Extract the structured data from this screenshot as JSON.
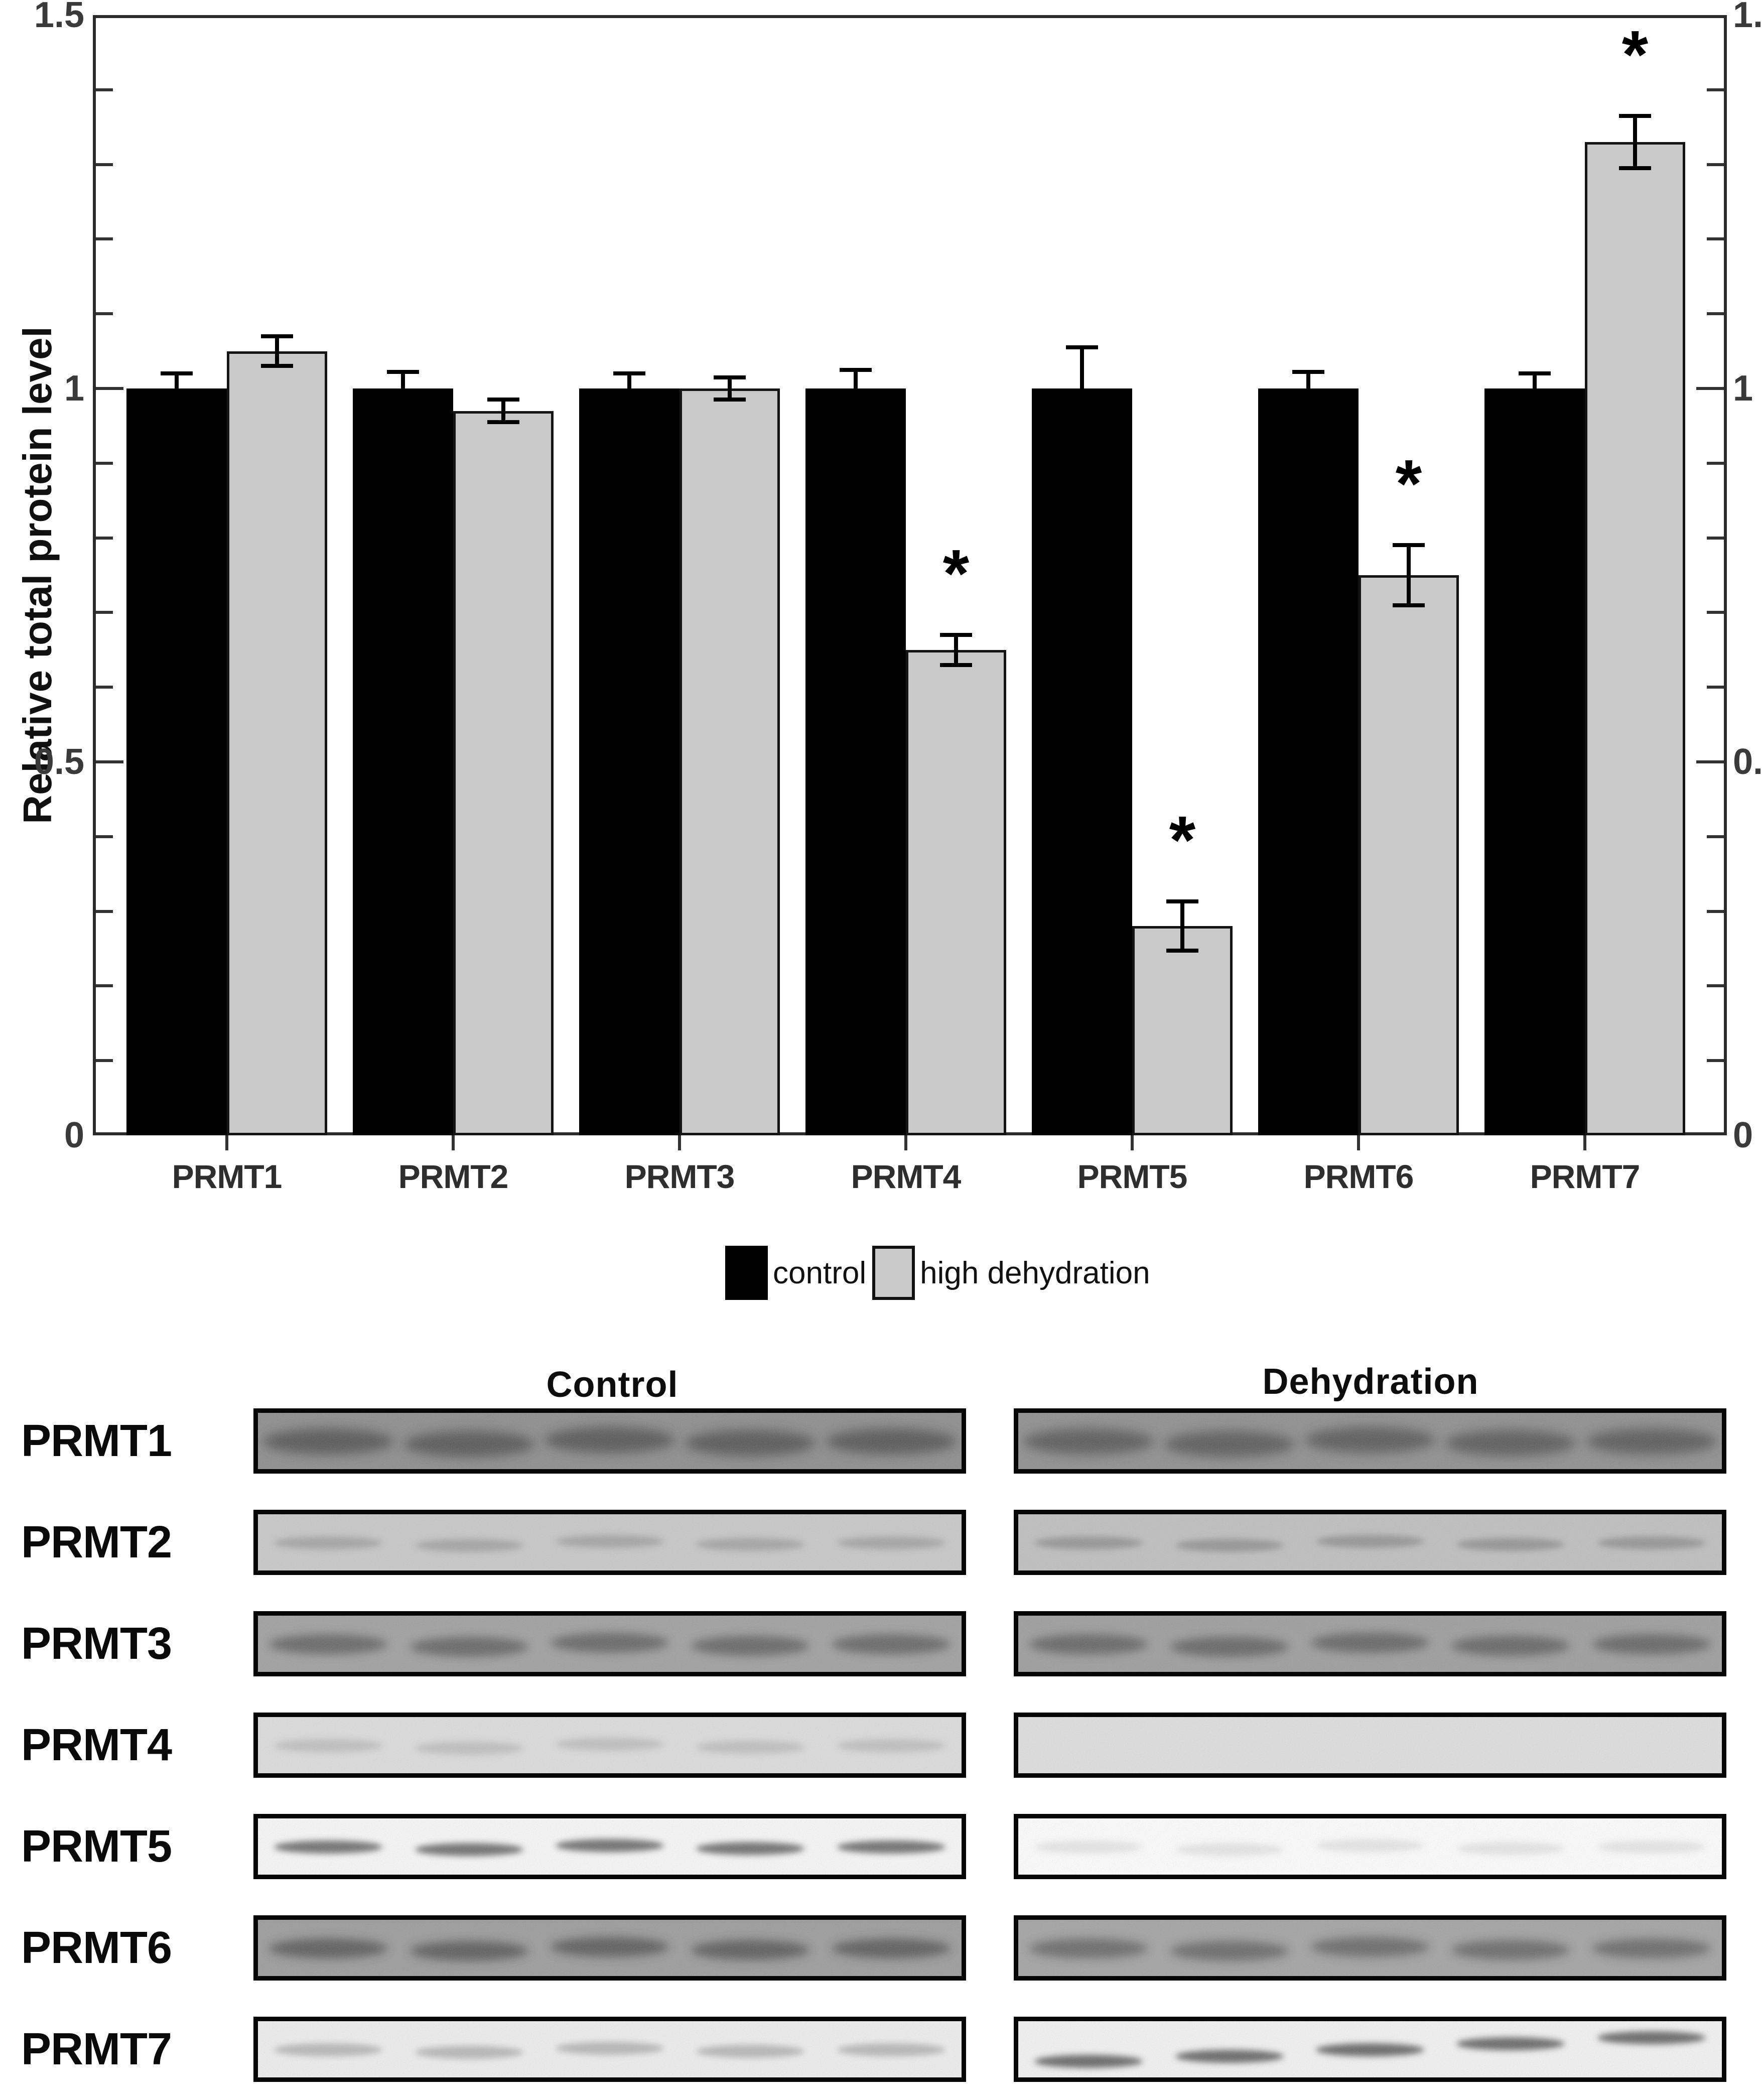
{
  "chart_data": {
    "type": "bar",
    "title": "",
    "categories": [
      "PRMT1",
      "PRMT2",
      "PRMT3",
      "PRMT4",
      "PRMT5",
      "PRMT6",
      "PRMT7"
    ],
    "series": [
      {
        "name": "control",
        "color": "#000000",
        "values": [
          1.0,
          1.0,
          1.0,
          1.0,
          1.0,
          1.0,
          1.0
        ],
        "errors": [
          0.02,
          0.022,
          0.02,
          0.025,
          0.055,
          0.022,
          0.02
        ],
        "significant": [
          false,
          false,
          false,
          false,
          false,
          false,
          false
        ]
      },
      {
        "name": "high dehydration",
        "color": "#c9c9c9",
        "values": [
          1.05,
          0.97,
          1.0,
          0.65,
          0.28,
          0.75,
          1.33
        ],
        "errors": [
          0.02,
          0.015,
          0.015,
          0.02,
          0.033,
          0.04,
          0.035
        ],
        "significant": [
          false,
          false,
          false,
          true,
          true,
          true,
          true
        ]
      }
    ],
    "significance_marker": "*",
    "xlabel": "",
    "ylabel": "Relative total protein level",
    "ylim": [
      0,
      1.5
    ],
    "yticks": [
      0,
      0.5,
      1,
      1.5
    ],
    "ytick_labels": [
      "0",
      "0.5",
      "1",
      "1.5"
    ],
    "minor_tick_step": 0.1,
    "grid": false,
    "axis_style": "boxed frame, y ticks mirrored on left and right sides",
    "legend_position": "below chart, centered"
  },
  "blots": {
    "column_headers": [
      "Control",
      "Dehydration"
    ],
    "lanes_per_blot": 5,
    "rows": [
      {
        "label": "PRMT1",
        "control": {
          "bg": "#8e8e8e",
          "band_color": "#3c3c3c",
          "band_opacity": 0.62,
          "band_style": "thick",
          "tilt": false
        },
        "dehydration": {
          "bg": "#909090",
          "band_color": "#3e3e3e",
          "band_opacity": 0.58,
          "band_style": "thick",
          "tilt": false
        }
      },
      {
        "label": "PRMT2",
        "control": {
          "bg": "#c7c7c7",
          "band_color": "#8a8a8a",
          "band_opacity": 0.55,
          "band_style": "thin",
          "tilt": false
        },
        "dehydration": {
          "bg": "#bfbfbf",
          "band_color": "#7c7c7c",
          "band_opacity": 0.6,
          "band_style": "thin",
          "tilt": false
        }
      },
      {
        "label": "PRMT3",
        "control": {
          "bg": "#a1a1a1",
          "band_color": "#4a4a4a",
          "band_opacity": 0.62,
          "band_style": "medium",
          "tilt": false
        },
        "dehydration": {
          "bg": "#9e9e9e",
          "band_color": "#484848",
          "band_opacity": 0.62,
          "band_style": "medium",
          "tilt": false
        }
      },
      {
        "label": "PRMT4",
        "control": {
          "bg": "#dadada",
          "band_color": "#a9a9a9",
          "band_opacity": 0.55,
          "band_style": "thin",
          "tilt": false
        },
        "dehydration": {
          "bg": "#dddddd",
          "band_color": "#d6d6d6",
          "band_opacity": 0.0,
          "band_style": "none",
          "tilt": false
        }
      },
      {
        "label": "PRMT5",
        "control": {
          "bg": "#f5f5f5",
          "band_color": "#5d5d5d",
          "band_opacity": 0.85,
          "band_style": "thin",
          "tilt": false
        },
        "dehydration": {
          "bg": "#fbfbfb",
          "band_color": "#c9c9c9",
          "band_opacity": 0.45,
          "band_style": "thin",
          "tilt": false
        }
      },
      {
        "label": "PRMT6",
        "control": {
          "bg": "#9c9c9c",
          "band_color": "#424242",
          "band_opacity": 0.65,
          "band_style": "medium",
          "tilt": false
        },
        "dehydration": {
          "bg": "#a3a3a3",
          "band_color": "#4c4c4c",
          "band_opacity": 0.6,
          "band_style": "medium",
          "tilt": false
        }
      },
      {
        "label": "PRMT7",
        "control": {
          "bg": "#ececec",
          "band_color": "#969696",
          "band_opacity": 0.62,
          "band_style": "thin",
          "tilt": false
        },
        "dehydration": {
          "bg": "#f0f0f0",
          "band_color": "#555555",
          "band_opacity": 0.85,
          "band_style": "thin",
          "tilt": true
        }
      }
    ]
  }
}
